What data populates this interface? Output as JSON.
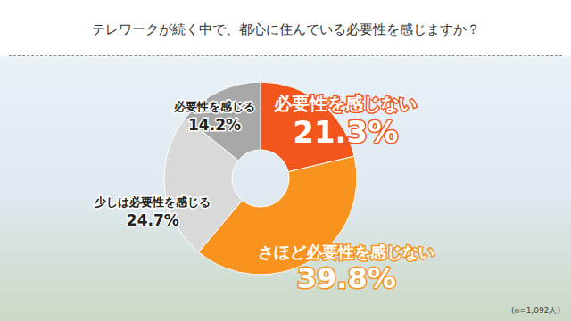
{
  "chart_data": {
    "type": "pie",
    "title": "テレワークが続く中で、都心に住んでいる必要性を感じますか？",
    "categories": [
      "必要性を感じない",
      "さほど必要性を感じない",
      "少しは必要性を感じる",
      "必要性を感じる"
    ],
    "values": [
      21.3,
      39.8,
      24.7,
      14.2
    ],
    "value_labels": [
      "21.3%",
      "39.8%",
      "24.7%",
      "14.2%"
    ],
    "colors": [
      "#f2561d",
      "#f7931e",
      "#d9d9d9",
      "#a8a8a8"
    ],
    "data_labels": true,
    "annotations": [
      "(n=1,092人)"
    ]
  }
}
